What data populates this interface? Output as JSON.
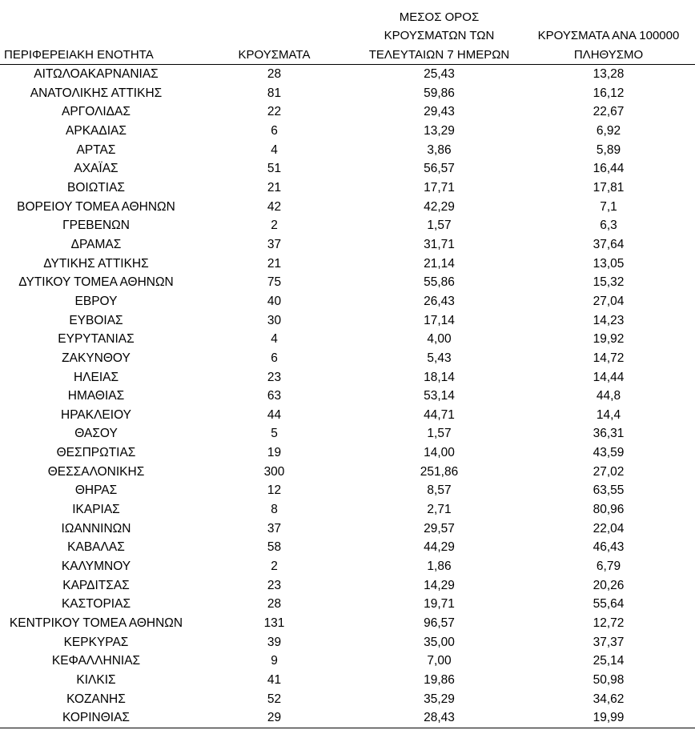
{
  "table": {
    "headers": {
      "region": "ΠΕΡΙΦΕΡΕΙΑΚΗ ΕΝΟΤΗΤΑ",
      "cases": "ΚΡΟΥΣΜΑΤΑ",
      "avg7": "ΜΕΣΟΣ ΟΡΟΣ\nΚΡΟΥΣΜΑΤΩΝ ΤΩΝ\nΤΕΛΕΥΤΑΙΩΝ 7 ΗΜΕΡΩΝ",
      "per100k": "ΚΡΟΥΣΜΑΤΑ ΑΝΑ 100000\nΠΛΗΘΥΣΜΟ"
    },
    "rows": [
      {
        "region": "ΑΙΤΩΛΟΑΚΑΡΝΑΝΙΑΣ",
        "cases": "28",
        "avg7": "25,43",
        "per100k": "13,28"
      },
      {
        "region": "ΑΝΑΤΟΛΙΚΗΣ ΑΤΤΙΚΗΣ",
        "cases": "81",
        "avg7": "59,86",
        "per100k": "16,12"
      },
      {
        "region": "ΑΡΓΟΛΙΔΑΣ",
        "cases": "22",
        "avg7": "29,43",
        "per100k": "22,67"
      },
      {
        "region": "ΑΡΚΑΔΙΑΣ",
        "cases": "6",
        "avg7": "13,29",
        "per100k": "6,92"
      },
      {
        "region": "ΑΡΤΑΣ",
        "cases": "4",
        "avg7": "3,86",
        "per100k": "5,89"
      },
      {
        "region": "ΑΧΑΪΑΣ",
        "cases": "51",
        "avg7": "56,57",
        "per100k": "16,44"
      },
      {
        "region": "ΒΟΙΩΤΙΑΣ",
        "cases": "21",
        "avg7": "17,71",
        "per100k": "17,81"
      },
      {
        "region": "ΒΟΡΕΙΟΥ ΤΟΜΕΑ ΑΘΗΝΩΝ",
        "cases": "42",
        "avg7": "42,29",
        "per100k": "7,1"
      },
      {
        "region": "ΓΡΕΒΕΝΩΝ",
        "cases": "2",
        "avg7": "1,57",
        "per100k": "6,3"
      },
      {
        "region": "ΔΡΑΜΑΣ",
        "cases": "37",
        "avg7": "31,71",
        "per100k": "37,64"
      },
      {
        "region": "ΔΥΤΙΚΗΣ ΑΤΤΙΚΗΣ",
        "cases": "21",
        "avg7": "21,14",
        "per100k": "13,05"
      },
      {
        "region": "ΔΥΤΙΚΟΥ ΤΟΜΕΑ ΑΘΗΝΩΝ",
        "cases": "75",
        "avg7": "55,86",
        "per100k": "15,32"
      },
      {
        "region": "ΕΒΡΟΥ",
        "cases": "40",
        "avg7": "26,43",
        "per100k": "27,04"
      },
      {
        "region": "ΕΥΒΟΙΑΣ",
        "cases": "30",
        "avg7": "17,14",
        "per100k": "14,23"
      },
      {
        "region": "ΕΥΡΥΤΑΝΙΑΣ",
        "cases": "4",
        "avg7": "4,00",
        "per100k": "19,92"
      },
      {
        "region": "ΖΑΚΥΝΘΟΥ",
        "cases": "6",
        "avg7": "5,43",
        "per100k": "14,72"
      },
      {
        "region": "ΗΛΕΙΑΣ",
        "cases": "23",
        "avg7": "18,14",
        "per100k": "14,44"
      },
      {
        "region": "ΗΜΑΘΙΑΣ",
        "cases": "63",
        "avg7": "53,14",
        "per100k": "44,8"
      },
      {
        "region": "ΗΡΑΚΛΕΙΟΥ",
        "cases": "44",
        "avg7": "44,71",
        "per100k": "14,4"
      },
      {
        "region": "ΘΑΣΟΥ",
        "cases": "5",
        "avg7": "1,57",
        "per100k": "36,31"
      },
      {
        "region": "ΘΕΣΠΡΩΤΙΑΣ",
        "cases": "19",
        "avg7": "14,00",
        "per100k": "43,59"
      },
      {
        "region": "ΘΕΣΣΑΛΟΝΙΚΗΣ",
        "cases": "300",
        "avg7": "251,86",
        "per100k": "27,02"
      },
      {
        "region": "ΘΗΡΑΣ",
        "cases": "12",
        "avg7": "8,57",
        "per100k": "63,55"
      },
      {
        "region": "ΙΚΑΡΙΑΣ",
        "cases": "8",
        "avg7": "2,71",
        "per100k": "80,96"
      },
      {
        "region": "ΙΩΑΝΝΙΝΩΝ",
        "cases": "37",
        "avg7": "29,57",
        "per100k": "22,04"
      },
      {
        "region": "ΚΑΒΑΛΑΣ",
        "cases": "58",
        "avg7": "44,29",
        "per100k": "46,43"
      },
      {
        "region": "ΚΑΛΥΜΝΟΥ",
        "cases": "2",
        "avg7": "1,86",
        "per100k": "6,79"
      },
      {
        "region": "ΚΑΡΔΙΤΣΑΣ",
        "cases": "23",
        "avg7": "14,29",
        "per100k": "20,26"
      },
      {
        "region": "ΚΑΣΤΟΡΙΑΣ",
        "cases": "28",
        "avg7": "19,71",
        "per100k": "55,64"
      },
      {
        "region": "ΚΕΝΤΡΙΚΟΥ ΤΟΜΕΑ ΑΘΗΝΩΝ",
        "cases": "131",
        "avg7": "96,57",
        "per100k": "12,72"
      },
      {
        "region": "ΚΕΡΚΥΡΑΣ",
        "cases": "39",
        "avg7": "35,00",
        "per100k": "37,37"
      },
      {
        "region": "ΚΕΦΑΛΛΗΝΙΑΣ",
        "cases": "9",
        "avg7": "7,00",
        "per100k": "25,14"
      },
      {
        "region": "ΚΙΛΚΙΣ",
        "cases": "41",
        "avg7": "19,86",
        "per100k": "50,98"
      },
      {
        "region": "ΚΟΖΑΝΗΣ",
        "cases": "52",
        "avg7": "35,29",
        "per100k": "34,62"
      },
      {
        "region": "ΚΟΡΙΝΘΙΑΣ",
        "cases": "29",
        "avg7": "28,43",
        "per100k": "19,99"
      }
    ]
  }
}
